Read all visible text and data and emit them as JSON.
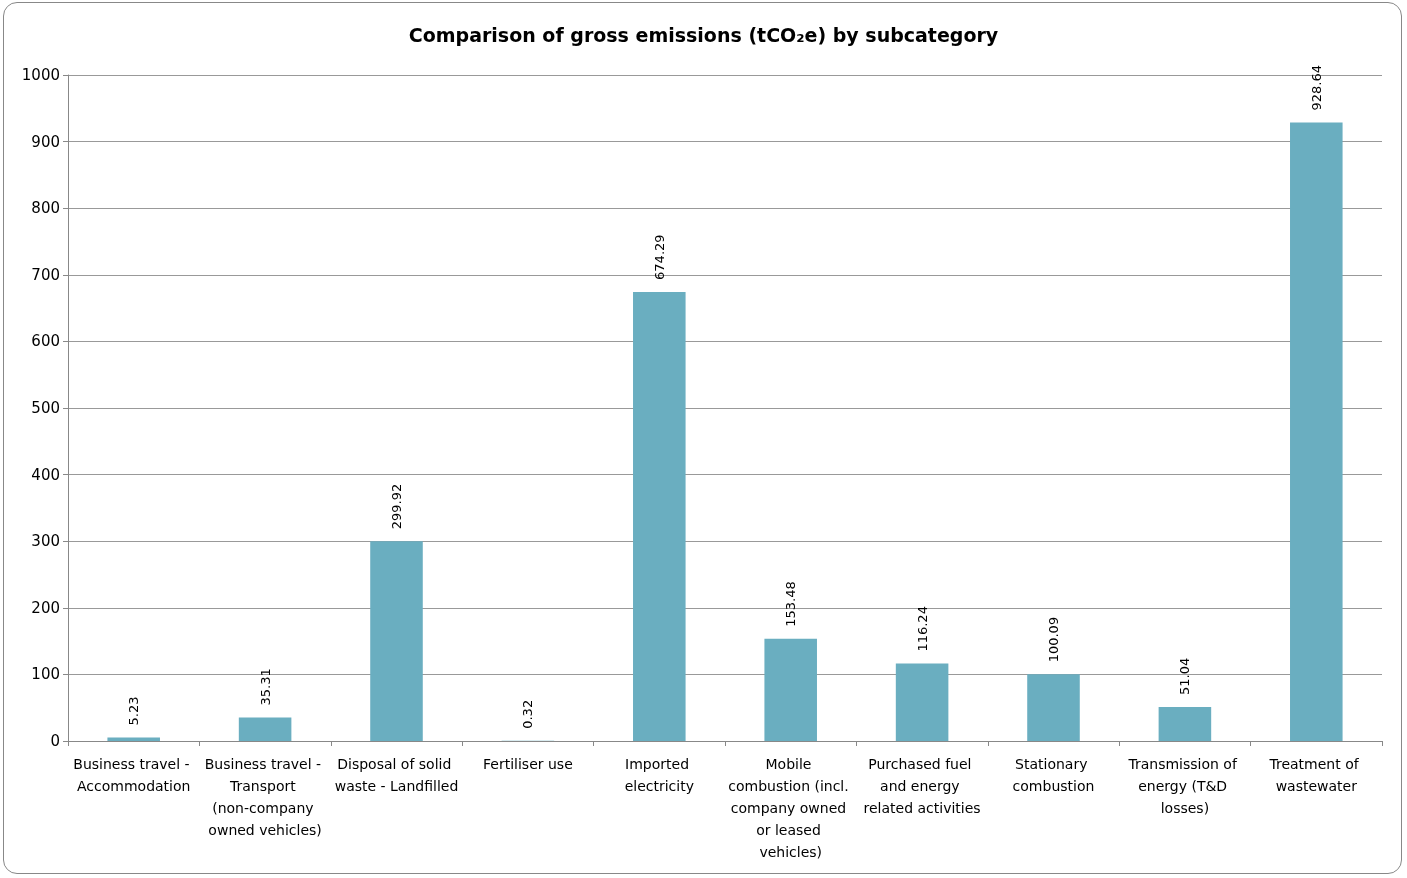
{
  "chart_data": {
    "type": "bar",
    "title": "Comparison of gross emissions (tCO₂e) by subcategory",
    "categories": [
      "Business travel - Accommodation",
      "Business travel - Transport (non-company owned vehicles)",
      "Disposal of solid waste - Landfilled",
      "Fertiliser use",
      "Imported electricity",
      "Mobile combustion (incl. company owned or leased vehicles)",
      "Purchased fuel and energy related activities",
      "Stationary combustion",
      "Transmission of energy (T&D losses)",
      "Treatment of wastewater"
    ],
    "values": [
      5.23,
      35.31,
      299.92,
      0.32,
      674.29,
      153.48,
      116.24,
      100.09,
      51.04,
      928.64
    ],
    "color": "#6aaec0",
    "ylim": [
      0,
      1000
    ],
    "yticks": [
      0,
      100,
      200,
      300,
      400,
      500,
      600,
      700,
      800,
      900,
      1000
    ],
    "grid": "y",
    "data_labels": true
  }
}
